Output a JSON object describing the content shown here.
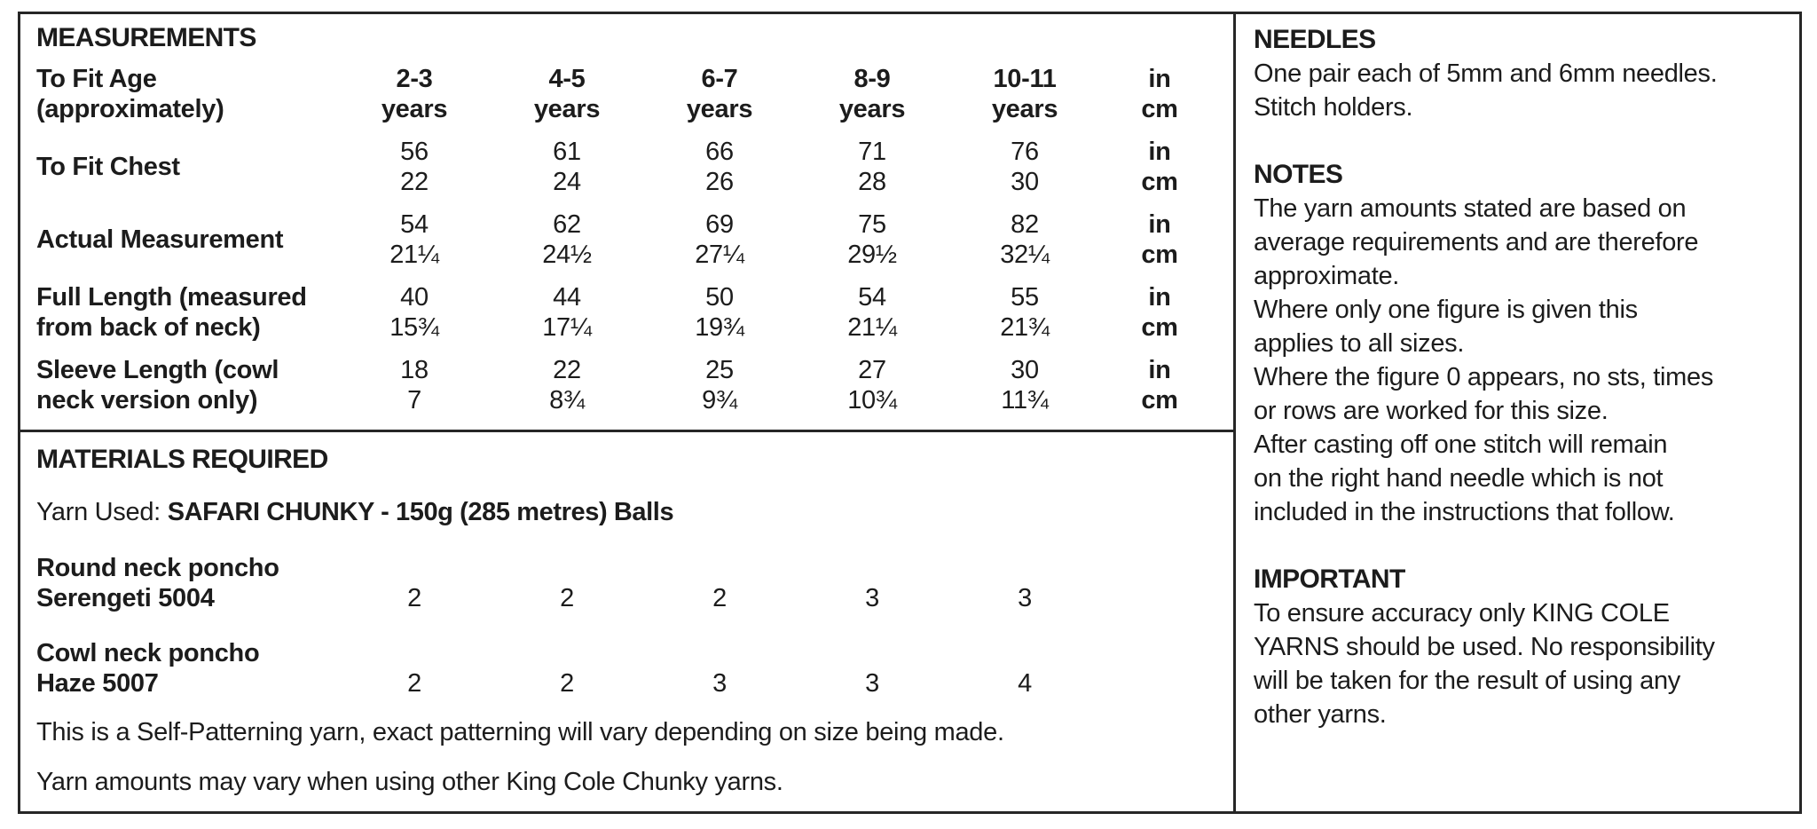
{
  "measurements": {
    "title": "MEASUREMENTS",
    "header": {
      "label_line1": "To Fit Age",
      "label_line2": "(approximately)",
      "sizes": [
        "2-3",
        "4-5",
        "6-7",
        "8-9",
        "10-11"
      ],
      "size_suffix": "years"
    },
    "units": {
      "top": "in",
      "bottom": "cm"
    },
    "rows": [
      {
        "label1": "To Fit Chest",
        "label2": "",
        "top": [
          "56",
          "61",
          "66",
          "71",
          "76"
        ],
        "bottom": [
          "22",
          "24",
          "26",
          "28",
          "30"
        ]
      },
      {
        "label1": "Actual Measurement",
        "label2": "",
        "top": [
          "54",
          "62",
          "69",
          "75",
          "82"
        ],
        "bottom": [
          "21¼",
          "24½",
          "27¼",
          "29½",
          "32¼"
        ]
      },
      {
        "label1": "Full Length (measured",
        "label2": "from back of neck)",
        "top": [
          "40",
          "44",
          "50",
          "54",
          "55"
        ],
        "bottom": [
          "15¾",
          "17¼",
          "19¾",
          "21¼",
          "21¾"
        ]
      },
      {
        "label1": "Sleeve Length (cowl",
        "label2": "neck version only)",
        "top": [
          "18",
          "22",
          "25",
          "27",
          "30"
        ],
        "bottom": [
          "7",
          "8¾",
          "9¾",
          "10¾",
          "11¾"
        ]
      }
    ]
  },
  "materials": {
    "title": "MATERIALS REQUIRED",
    "yarn_used_label": "Yarn Used: ",
    "yarn_used_value": "SAFARI CHUNKY - 150g (285 metres) Balls",
    "yarn_rows": [
      {
        "label1": "Round neck poncho",
        "label2": "Serengeti 5004",
        "values": [
          "2",
          "2",
          "2",
          "3",
          "3"
        ]
      },
      {
        "label1": "Cowl neck poncho",
        "label2": "Haze 5007",
        "values": [
          "2",
          "2",
          "3",
          "3",
          "4"
        ]
      }
    ],
    "note1": "This is a Self-Patterning yarn, exact patterning will vary depending on size being made.",
    "note2": "Yarn amounts may vary when using other King Cole Chunky yarns."
  },
  "sidebar": {
    "needles": {
      "title": "NEEDLES",
      "lines": [
        "One pair each of 5mm and 6mm needles.",
        "Stitch holders."
      ]
    },
    "notes": {
      "title": "NOTES",
      "lines": [
        "The yarn amounts stated are based on",
        "average requirements and are therefore",
        "approximate.",
        "Where only one figure is given this",
        "applies to all sizes.",
        "Where the figure 0 appears, no sts, times",
        "or rows are worked for this size.",
        "After casting off one stitch will remain",
        "on the right hand needle which is not",
        "included in the instructions that follow."
      ]
    },
    "important": {
      "title": "IMPORTANT",
      "lines": [
        "To ensure accuracy only KING COLE",
        "YARNS should be used. No responsibility",
        "will be taken for the result of using any",
        "other yarns."
      ]
    }
  }
}
